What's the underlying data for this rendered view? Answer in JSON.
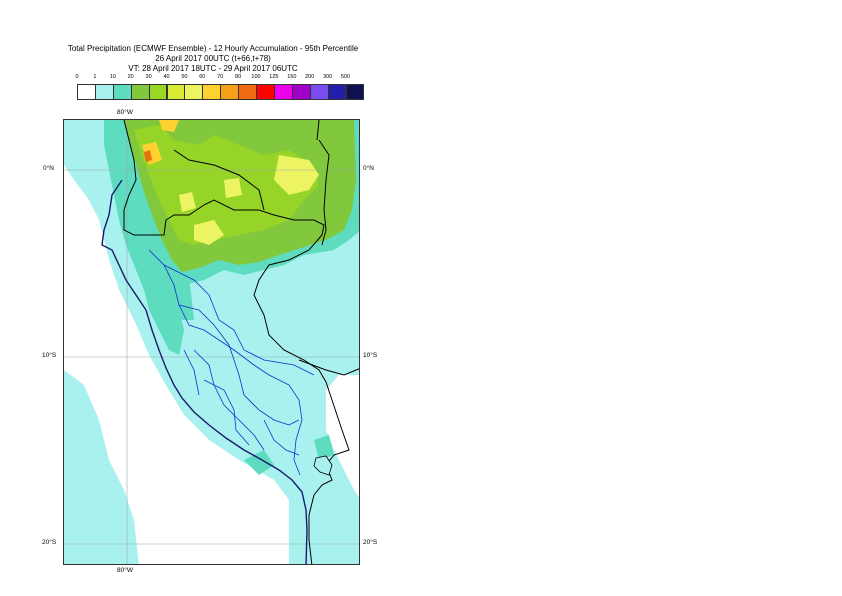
{
  "header": {
    "title": "Total Precipitation (ECMWF Ensemble) - 12 Hourly Accumulation - 95th Percentile",
    "run": "26 April 2017 00UTC (t+66,t+78)",
    "valid": "VT: 28 April 2017 18UTC - 29 April 2017 06UTC"
  },
  "legend": {
    "thresholds": [
      "0",
      "1",
      "10",
      "20",
      "30",
      "40",
      "50",
      "60",
      "70",
      "80",
      "100",
      "125",
      "150",
      "200",
      "300",
      "500"
    ],
    "colors": [
      "#ffffff",
      "#a8f1ee",
      "#5edcc0",
      "#82c83c",
      "#9ad624",
      "#d8ea32",
      "#ecf464",
      "#ffd230",
      "#f4a018",
      "#f06c10",
      "#ff0000",
      "#ee00ee",
      "#a000c8",
      "#7a4cf0",
      "#2020aa",
      "#101050"
    ]
  },
  "map": {
    "meridian_top_label": "80°W",
    "meridian_bottom_label": "80°W",
    "lat_labels": [
      "0°N",
      "10°S",
      "20°S"
    ]
  }
}
